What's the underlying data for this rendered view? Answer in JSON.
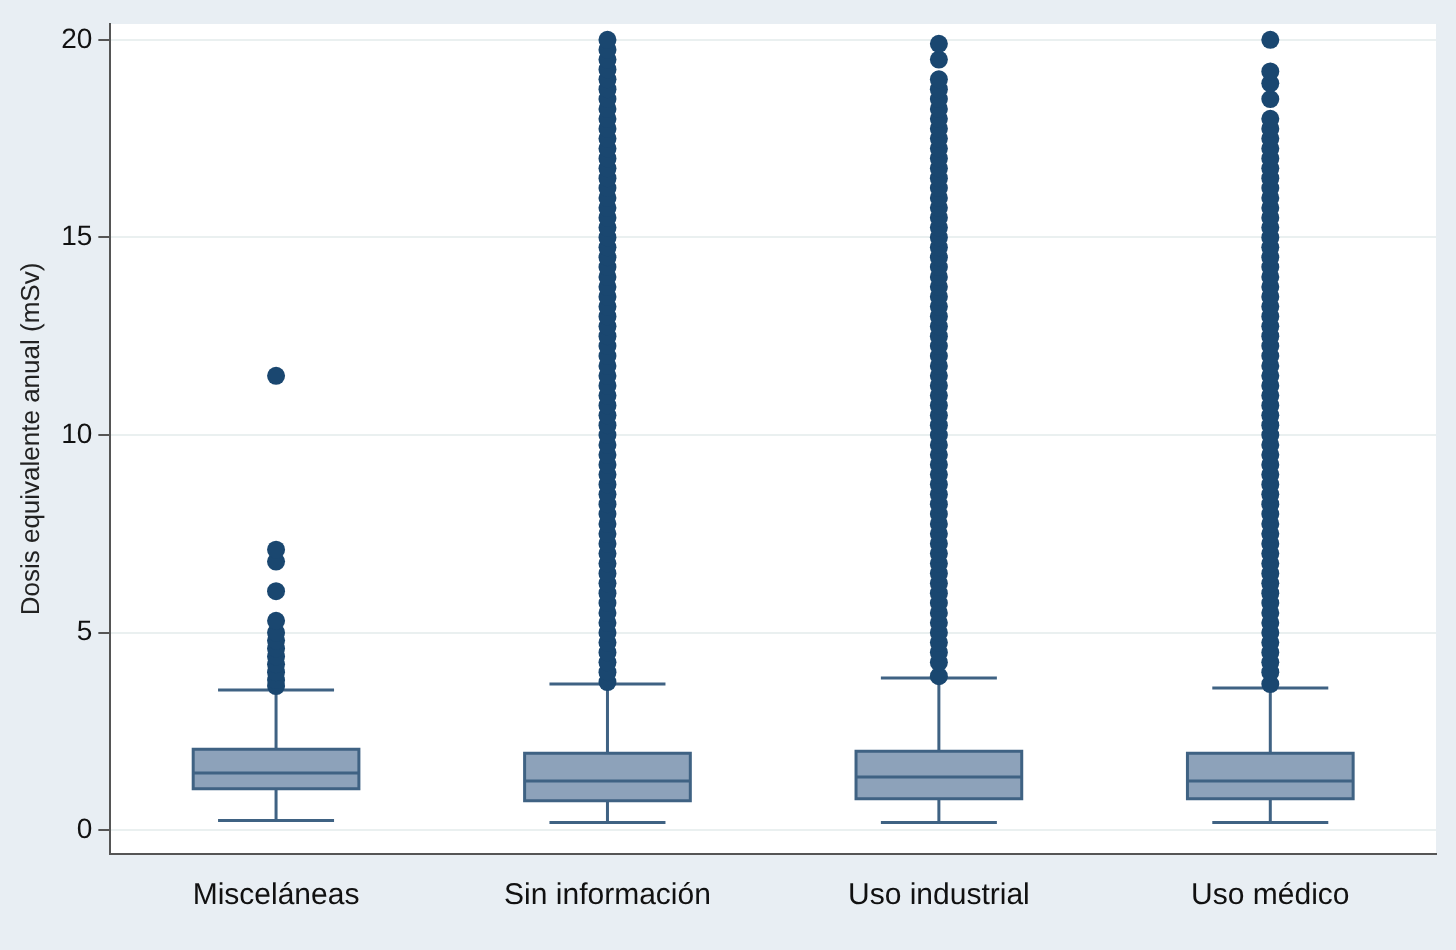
{
  "chart_data": {
    "type": "box",
    "ylabel": "Dosis equivalente anual (mSv)",
    "categories": [
      "Misceláneas",
      "Sin información",
      "Uso industrial",
      "Uso médico"
    ],
    "color": "#8da2ba",
    "ylim": [
      -0.6,
      20.4
    ],
    "yticks": [
      0,
      5,
      10,
      15,
      20
    ],
    "grid": "y",
    "boxes": [
      {
        "low": 0.25,
        "q1": 1.05,
        "median": 1.45,
        "q3": 2.05,
        "high": 3.55,
        "outliers": [
          3.65,
          3.8,
          4,
          4.2,
          4.4,
          4.6,
          4.8,
          5,
          5.3,
          6.05,
          6.8,
          7.1,
          11.5
        ]
      },
      {
        "low": 0.2,
        "q1": 0.75,
        "median": 1.25,
        "q3": 1.95,
        "high": 3.7,
        "outliers": [
          3.75,
          4,
          4.25,
          4.5,
          4.75,
          5,
          5.25,
          5.5,
          5.75,
          6,
          6.25,
          6.5,
          6.75,
          7,
          7.25,
          7.5,
          7.75,
          8,
          8.25,
          8.5,
          8.75,
          9,
          9.25,
          9.5,
          9.75,
          10,
          10.25,
          10.5,
          10.75,
          11,
          11.25,
          11.5,
          11.75,
          12,
          12.25,
          12.5,
          12.75,
          13,
          13.25,
          13.5,
          13.75,
          14,
          14.25,
          14.5,
          14.75,
          15,
          15.25,
          15.5,
          15.75,
          16,
          16.25,
          16.5,
          16.75,
          17,
          17.25,
          17.5,
          17.75,
          18,
          18.25,
          18.5,
          18.75,
          19,
          19.25,
          19.5,
          19.75,
          20
        ]
      },
      {
        "low": 0.2,
        "q1": 0.8,
        "median": 1.35,
        "q3": 2,
        "high": 3.85,
        "outliers": [
          3.9,
          4.25,
          4.5,
          4.75,
          5,
          5.25,
          5.5,
          5.75,
          6,
          6.25,
          6.5,
          6.75,
          7,
          7.25,
          7.5,
          7.75,
          8,
          8.25,
          8.5,
          8.75,
          9,
          9.25,
          9.5,
          9.75,
          10,
          10.25,
          10.5,
          10.75,
          11,
          11.25,
          11.5,
          11.75,
          12,
          12.25,
          12.5,
          12.75,
          13,
          13.25,
          13.5,
          13.75,
          14,
          14.25,
          14.5,
          14.75,
          15,
          15.25,
          15.5,
          15.75,
          16,
          16.25,
          16.5,
          16.75,
          17,
          17.25,
          17.5,
          17.75,
          18,
          18.25,
          18.5,
          18.75,
          19,
          19.5,
          19.9
        ]
      },
      {
        "low": 0.2,
        "q1": 0.8,
        "median": 1.25,
        "q3": 1.95,
        "high": 3.6,
        "outliers": [
          3.7,
          4,
          4.25,
          4.5,
          4.75,
          5,
          5.25,
          5.5,
          5.75,
          6,
          6.25,
          6.5,
          6.75,
          7,
          7.25,
          7.5,
          7.75,
          8,
          8.25,
          8.5,
          8.75,
          9,
          9.25,
          9.5,
          9.75,
          10,
          10.25,
          10.5,
          10.75,
          11,
          11.25,
          11.5,
          11.75,
          12,
          12.25,
          12.5,
          12.75,
          13,
          13.25,
          13.5,
          13.75,
          14,
          14.25,
          14.5,
          14.75,
          15,
          15.25,
          15.5,
          15.75,
          16,
          16.25,
          16.5,
          16.75,
          17,
          17.25,
          17.5,
          17.75,
          18,
          18.5,
          18.9,
          19.2,
          20
        ]
      }
    ]
  }
}
